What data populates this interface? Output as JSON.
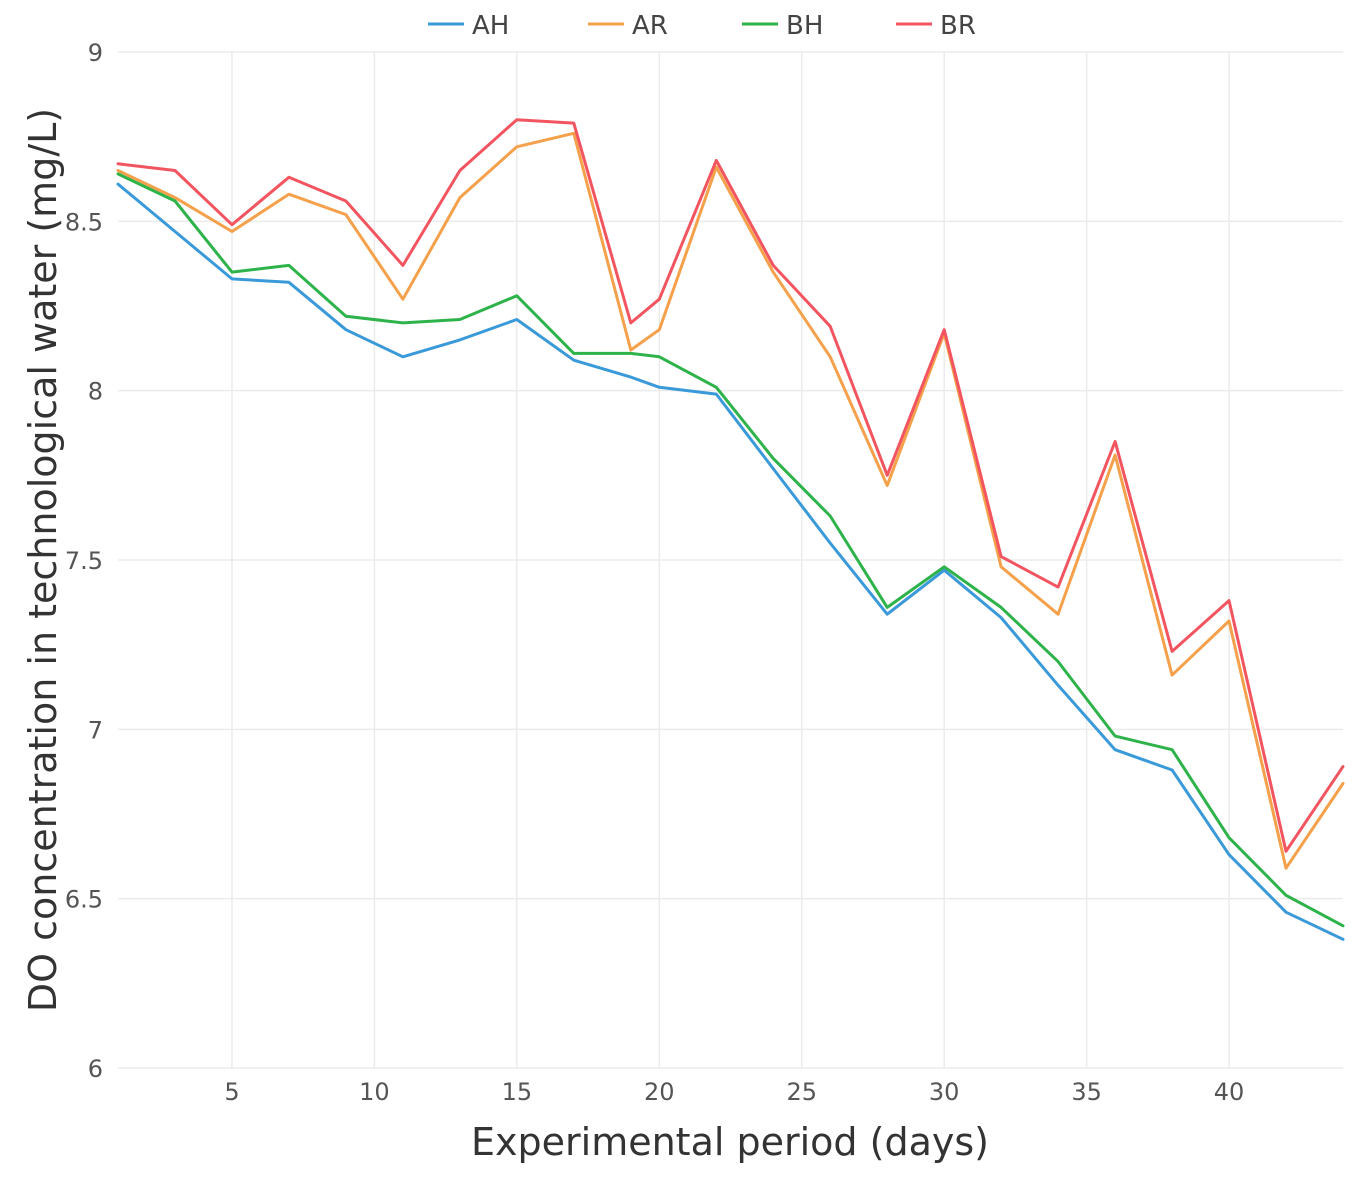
{
  "chart_data": {
    "type": "line",
    "title": "",
    "xlabel": "Experimental period (days)",
    "ylabel": "DO concentration in technological water (mg/L)",
    "xlim": [
      1,
      44
    ],
    "ylim": [
      6,
      9
    ],
    "xticks": [
      5,
      10,
      15,
      20,
      25,
      30,
      35,
      40
    ],
    "yticks": [
      6,
      6.5,
      7,
      7.5,
      8,
      8.5,
      9
    ],
    "ytick_labels": [
      "6",
      "6.5",
      "7",
      "7.5",
      "8",
      "8.5",
      "9"
    ],
    "grid": true,
    "legend_position": "top",
    "x": [
      1,
      3,
      5,
      7,
      9,
      11,
      13,
      15,
      17,
      19,
      20,
      22,
      24,
      26,
      28,
      30,
      32,
      34,
      36,
      38,
      40,
      42,
      44
    ],
    "series": [
      {
        "name": "AH",
        "color": "#3a9ad9",
        "values": [
          8.61,
          8.47,
          8.33,
          8.32,
          8.18,
          8.1,
          8.15,
          8.21,
          8.09,
          8.04,
          8.01,
          7.99,
          7.77,
          7.55,
          7.34,
          7.47,
          7.33,
          7.13,
          6.94,
          6.88,
          6.63,
          6.46,
          6.38
        ]
      },
      {
        "name": "AR",
        "color": "#f5a04a",
        "values": [
          8.65,
          8.57,
          8.47,
          8.58,
          8.52,
          8.27,
          8.57,
          8.72,
          8.76,
          8.12,
          8.18,
          8.66,
          8.35,
          8.1,
          7.72,
          8.17,
          7.48,
          7.34,
          7.81,
          7.16,
          7.32,
          6.59,
          6.84
        ]
      },
      {
        "name": "BH",
        "color": "#2db34a",
        "values": [
          8.64,
          8.56,
          8.35,
          8.37,
          8.22,
          8.2,
          8.21,
          8.28,
          8.11,
          8.11,
          8.1,
          8.01,
          7.8,
          7.63,
          7.36,
          7.48,
          7.36,
          7.2,
          6.98,
          6.94,
          6.68,
          6.51,
          6.42
        ]
      },
      {
        "name": "BR",
        "color": "#f25560",
        "values": [
          8.67,
          8.65,
          8.49,
          8.63,
          8.56,
          8.37,
          8.65,
          8.8,
          8.79,
          8.2,
          8.27,
          8.68,
          8.37,
          8.19,
          7.75,
          8.18,
          7.51,
          7.42,
          7.85,
          7.23,
          7.38,
          6.64,
          6.89
        ]
      }
    ]
  }
}
